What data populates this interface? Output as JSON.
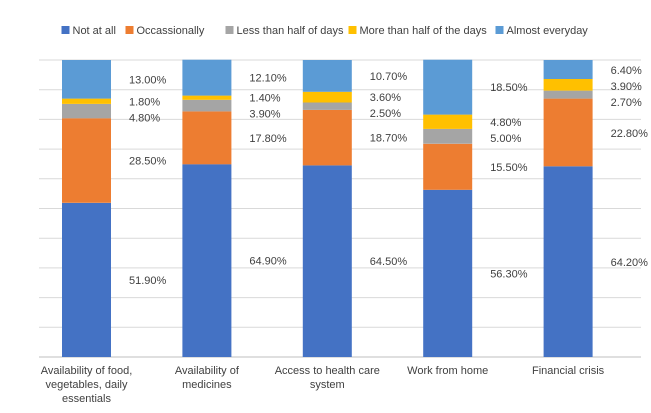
{
  "chart_data": {
    "type": "bar",
    "stacked": true,
    "title": "",
    "xlabel": "",
    "ylabel": "",
    "ylim": [
      0,
      100
    ],
    "grid": true,
    "legend_position": "top",
    "categories": [
      "Availability of food, vegetables, daily essentials",
      "Availability of medicines",
      "Access to health care system",
      "Work from home",
      "Financial crisis"
    ],
    "category_label_lines": [
      [
        "Availability of food,",
        "vegetables, daily",
        "essentials"
      ],
      [
        "Availability of",
        "medicines"
      ],
      [
        "Access to health care",
        "system"
      ],
      [
        "Work from home"
      ],
      [
        "Financial crisis"
      ]
    ],
    "series": [
      {
        "name": "Not at all",
        "color": "#4472C4",
        "values": [
          51.9,
          64.9,
          64.5,
          56.3,
          64.2
        ],
        "labels": [
          "51.90%",
          "64.90%",
          "64.50%",
          "56.30%",
          "64.20%"
        ]
      },
      {
        "name": "Occassionally",
        "color": "#ED7D31",
        "values": [
          28.5,
          17.8,
          18.7,
          15.5,
          22.8
        ],
        "labels": [
          "28.50%",
          "17.80%",
          "18.70%",
          "15.50%",
          "22.80%"
        ]
      },
      {
        "name": "Less than half of days",
        "color": "#A5A5A5",
        "values": [
          4.8,
          3.9,
          2.5,
          5.0,
          2.7
        ],
        "labels": [
          "4.80%",
          "3.90%",
          "2.50%",
          "5.00%",
          "2.70%"
        ]
      },
      {
        "name": "More than half of the days",
        "color": "#FFC000",
        "values": [
          1.8,
          1.4,
          3.6,
          4.8,
          3.9
        ],
        "labels": [
          "1.80%",
          "1.40%",
          "3.60%",
          "4.80%",
          "3.90%"
        ]
      },
      {
        "name": "Almost everyday",
        "color": "#5B9BD5",
        "values": [
          13.0,
          12.1,
          10.7,
          18.5,
          6.4
        ],
        "labels": [
          "13.00%",
          "12.10%",
          "10.70%",
          "18.50%",
          "6.40%"
        ]
      }
    ]
  }
}
